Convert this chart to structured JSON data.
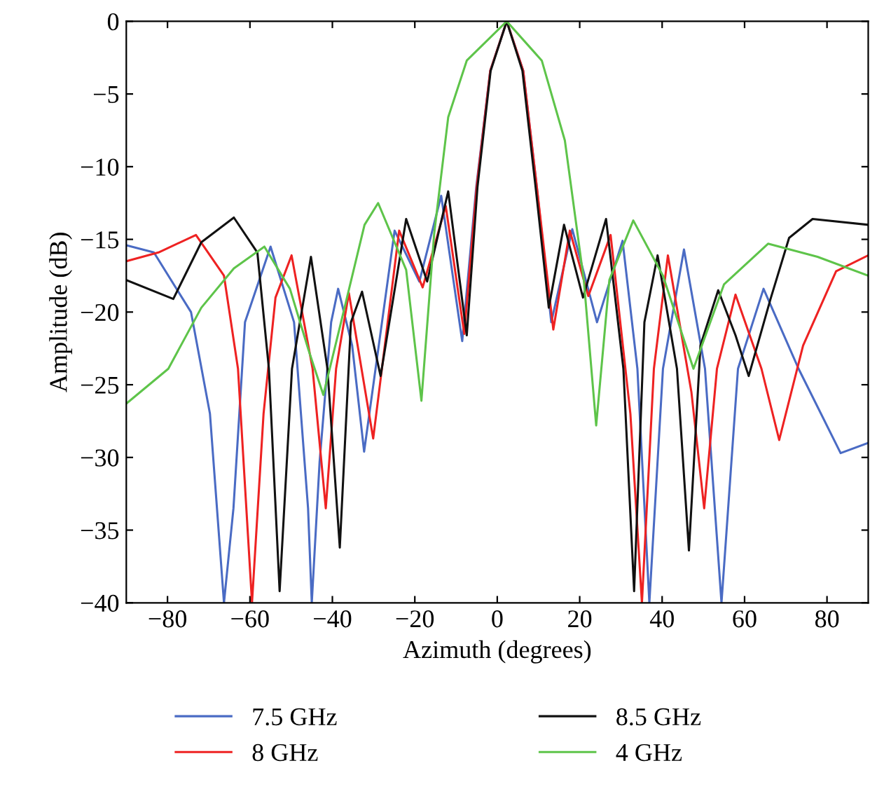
{
  "chart_data": {
    "type": "line",
    "xlabel": "Azimuth (degrees)",
    "ylabel": "Amplitude (dB)",
    "xlim": [
      -90,
      90
    ],
    "ylim": [
      -40,
      0
    ],
    "xticks": [
      -80,
      -60,
      -40,
      -20,
      0,
      20,
      40,
      60,
      80
    ],
    "yticks": [
      -40,
      -35,
      -30,
      -25,
      -20,
      -15,
      -10,
      -5,
      0
    ],
    "grid": false,
    "legend": "bottom",
    "marker": "none",
    "line_style": "solid",
    "series": [
      {
        "name": "7.5 GHz",
        "color": "#4a6bc4",
        "x": [
          -90,
          -83.3,
          -74.3,
          -69.7,
          -66.3,
          -64,
          -61.2,
          -55,
          -49.3,
          -45.9,
          -45,
          -43.1,
          -40.3,
          -38.6,
          -35.2,
          -32.3,
          -24.9,
          -18.9,
          -13.6,
          -8.5,
          -5.1,
          -1.7,
          2.3,
          6.3,
          9.6,
          13.1,
          18.2,
          24.2,
          30.4,
          34.0,
          36.9,
          40.2,
          45.3,
          50.4,
          54.4,
          58.4,
          64.6,
          73.1,
          83.3,
          90
        ],
        "values": [
          -15.4,
          -15.9,
          -20,
          -27,
          -40,
          -33.5,
          -20.7,
          -15.5,
          -20.7,
          -33.5,
          -40,
          -30.3,
          -20.7,
          -18.4,
          -22.3,
          -29.6,
          -14.4,
          -17.9,
          -12.0,
          -22.0,
          -11.4,
          -3.4,
          0,
          -3.4,
          -11.4,
          -20.7,
          -14.3,
          -20.7,
          -15.1,
          -23.9,
          -40,
          -23.9,
          -15.7,
          -23.9,
          -40,
          -23.9,
          -18.4,
          -23.9,
          -29.7,
          -29.0
        ]
      },
      {
        "name": "8 GHz",
        "color": "#ee2222",
        "x": [
          -90,
          -82.2,
          -73.1,
          -66.3,
          -62.9,
          -59.5,
          -56.7,
          -53.8,
          -49.9,
          -44.8,
          -41.6,
          -39.1,
          -36.0,
          -30.1,
          -23.8,
          -18.1,
          -12.5,
          -8.0,
          -5.0,
          -1.7,
          2.3,
          6.3,
          9.6,
          13.6,
          17.6,
          22.1,
          27.5,
          32.3,
          35.1,
          38.0,
          41.4,
          47.1,
          50.2,
          53.3,
          57.8,
          64.1,
          68.4,
          74.2,
          82.2,
          90
        ],
        "values": [
          -16.5,
          -15.9,
          -14.7,
          -17.5,
          -23.9,
          -40,
          -27,
          -19,
          -16.1,
          -23.9,
          -33.5,
          -23.9,
          -18.7,
          -28.7,
          -14.4,
          -18.3,
          -12.7,
          -21.5,
          -11.4,
          -3.4,
          0,
          -3.4,
          -11.4,
          -21.2,
          -14.4,
          -18.9,
          -14.7,
          -27,
          -40,
          -23.9,
          -16.1,
          -25.5,
          -33.5,
          -23.9,
          -18.8,
          -23.9,
          -28.8,
          -22.3,
          -17.2,
          -16.1
        ]
      },
      {
        "name": "8.5 GHz",
        "color": "#111111",
        "x": [
          -90,
          -78.6,
          -71.8,
          -63.9,
          -58.2,
          -55.4,
          -52.8,
          -49.8,
          -45.2,
          -41.2,
          -38.2,
          -35.5,
          -32.8,
          -28.3,
          -22.1,
          -17.0,
          -11.9,
          -7.4,
          -4.8,
          -1.6,
          2.3,
          6.1,
          9.3,
          12.5,
          16.2,
          20.8,
          26.4,
          30.6,
          33.2,
          35.7,
          38.9,
          43.6,
          46.5,
          49.3,
          53.6,
          57.8,
          61.0,
          66.3,
          70.8,
          76.5,
          90
        ],
        "values": [
          -17.8,
          -19.1,
          -15.2,
          -13.5,
          -15.9,
          -23.9,
          -39.2,
          -23.9,
          -16.2,
          -23.9,
          -36.2,
          -20.7,
          -18.6,
          -24.4,
          -13.6,
          -17.9,
          -11.7,
          -21.6,
          -11.4,
          -3.4,
          0,
          -3.4,
          -11.4,
          -19.7,
          -14.0,
          -19.0,
          -13.6,
          -23.9,
          -39.2,
          -20.7,
          -16.1,
          -23.9,
          -36.4,
          -22.3,
          -18.5,
          -21.6,
          -24.4,
          -19.1,
          -14.9,
          -13.6,
          -14.0
        ]
      },
      {
        "name": "4 GHz",
        "color": "#5ec44a",
        "x": [
          -90,
          -79.8,
          -71.8,
          -63.9,
          -56.5,
          -50.3,
          -45.8,
          -42.2,
          -37.9,
          -32.2,
          -28.9,
          -22.1,
          -18.4,
          -15.3,
          -11.9,
          -7.4,
          2.3,
          10.8,
          16.4,
          21.0,
          24.0,
          27.2,
          33.0,
          40.2,
          47.6,
          55.0,
          65.7,
          77.7,
          90
        ],
        "values": [
          -26.3,
          -23.9,
          -19.7,
          -17.0,
          -15.5,
          -18.4,
          -22.6,
          -25.7,
          -20.7,
          -14.0,
          -12.5,
          -17.1,
          -26.1,
          -14.6,
          -6.6,
          -2.7,
          0,
          -2.7,
          -8.2,
          -17.8,
          -27.8,
          -17.8,
          -13.7,
          -17.5,
          -23.9,
          -18.1,
          -15.3,
          -16.2,
          -17.5
        ]
      }
    ]
  }
}
